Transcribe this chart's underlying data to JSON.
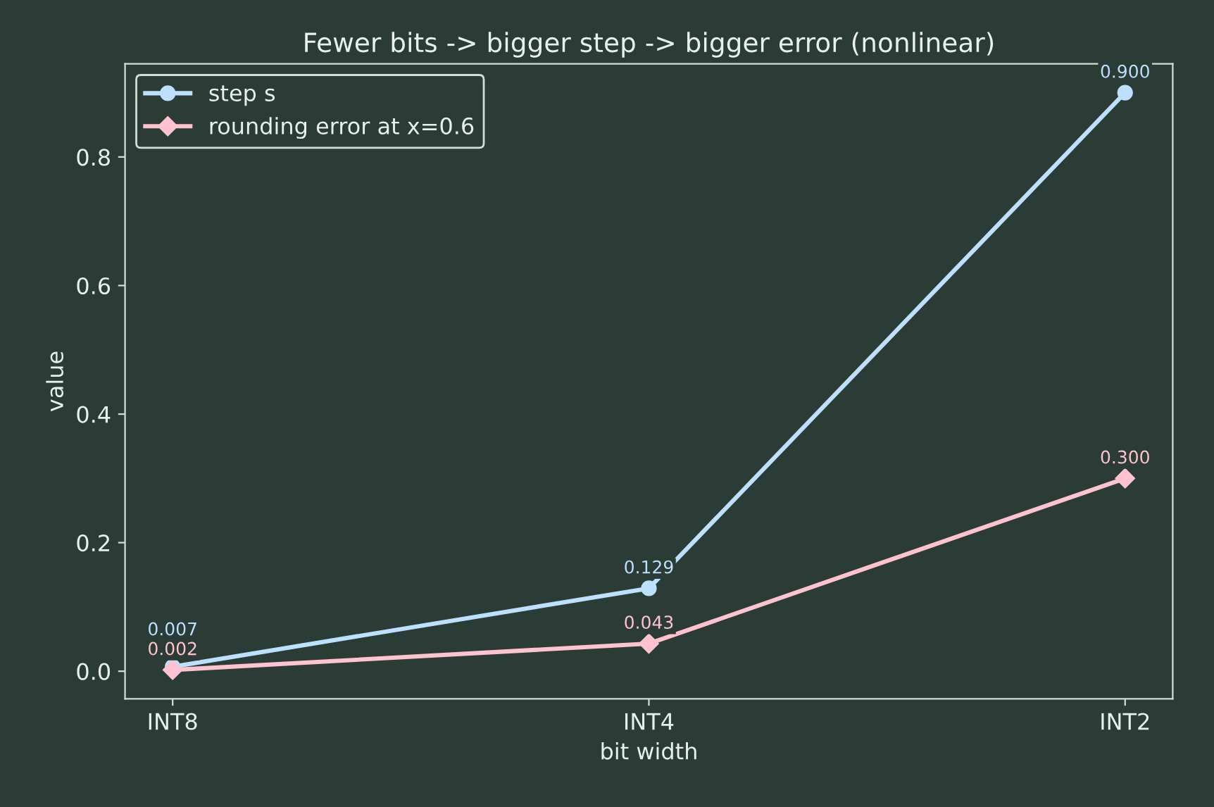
{
  "chart_data": {
    "type": "line",
    "title": "Fewer bits -> bigger step -> bigger error (nonlinear)",
    "xlabel": "bit width",
    "ylabel": "value",
    "categories": [
      "INT8",
      "INT4",
      "INT2"
    ],
    "series": [
      {
        "name": "step s",
        "color": "#bde0fe",
        "marker": "circle",
        "values": [
          0.007,
          0.129,
          0.9
        ],
        "value_labels": [
          "0.007",
          "0.129",
          "0.900"
        ]
      },
      {
        "name": "rounding error at x=0.6",
        "color": "#ffc2d1",
        "marker": "diamond",
        "values": [
          0.002,
          0.043,
          0.3
        ],
        "value_labels": [
          "0.002",
          "0.043",
          "0.300"
        ]
      }
    ],
    "ylim": [
      -0.043,
      0.945
    ],
    "yticks": [
      {
        "value": 0,
        "label": "0.0"
      },
      0.2,
      0.4,
      0.6,
      0.8
    ],
    "grid": false,
    "legend": "top left",
    "line_style": "solid"
  }
}
